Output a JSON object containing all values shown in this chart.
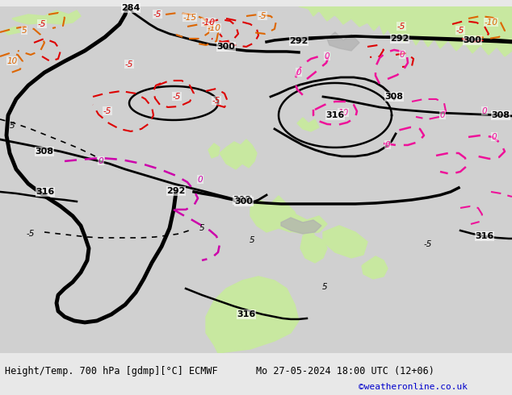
{
  "title_left": "Height/Temp. 700 hPa [gdmp][°C] ECMWF",
  "title_right": "Mo 27-05-2024 18:00 UTC (12+06)",
  "credit": "©weatheronline.co.uk",
  "bg_light_gray": "#d8d8d8",
  "land_green": "#c8e8a0",
  "land_green2": "#b8dc8c",
  "sea_white": "#e8e8e8",
  "gray_terrain": "#b8b8b8",
  "label_fontsize": 8,
  "credit_color": "#0000cc",
  "footer_bg": "#e8e8e8",
  "map_bg": "#d0d0d0"
}
